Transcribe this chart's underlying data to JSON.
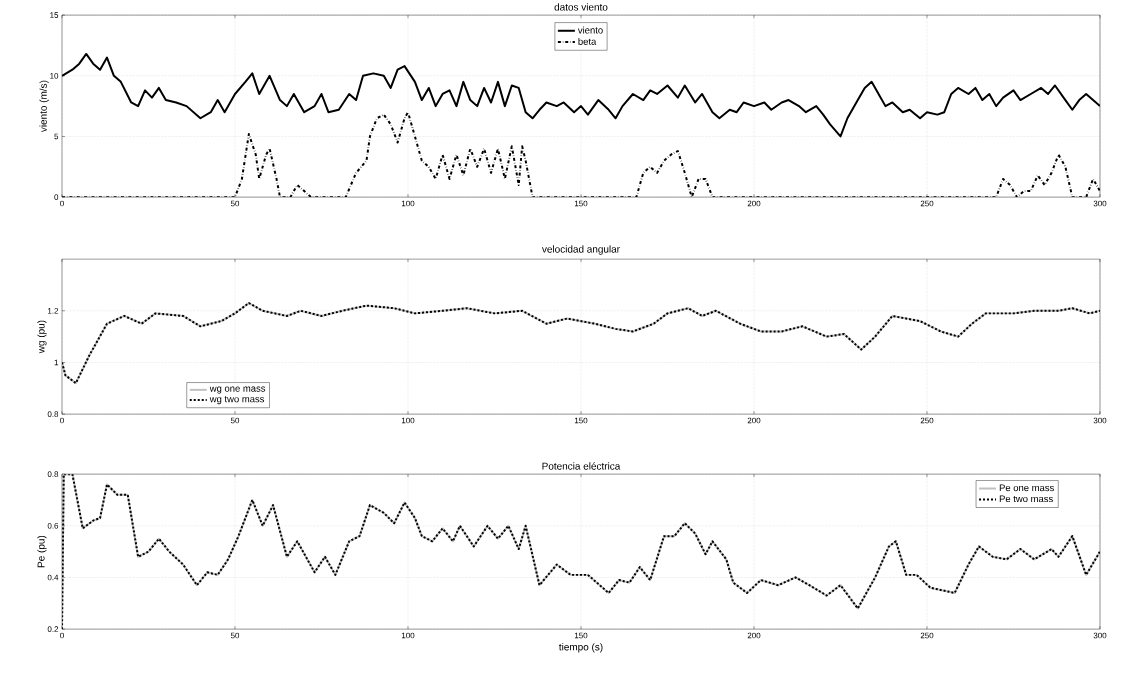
{
  "chart_data": [
    {
      "type": "line",
      "title": "datos viento",
      "ylabel": "viento (m/s)",
      "xlim": [
        0,
        300
      ],
      "ylim": [
        0,
        15
      ],
      "xticks": [
        0,
        50,
        100,
        150,
        200,
        250,
        300
      ],
      "yticks": [
        0,
        5,
        10,
        15
      ],
      "grid": true,
      "legend": "top",
      "series": [
        {
          "name": "viento",
          "color": "#000000",
          "line_style": "solid",
          "x": [
            0,
            3,
            5,
            7,
            9,
            11,
            13,
            15,
            17,
            20,
            22,
            24,
            26,
            28,
            30,
            33,
            36,
            40,
            43,
            45,
            47,
            50,
            53,
            55,
            57,
            60,
            63,
            65,
            67,
            70,
            73,
            75,
            77,
            80,
            83,
            85,
            87,
            90,
            93,
            95,
            97,
            99,
            102,
            104,
            106,
            108,
            110,
            112,
            114,
            116,
            118,
            120,
            122,
            124,
            126,
            128,
            130,
            132,
            134,
            136,
            138,
            140,
            143,
            145,
            148,
            150,
            152,
            155,
            158,
            160,
            162,
            165,
            168,
            170,
            172,
            175,
            178,
            180,
            183,
            185,
            188,
            190,
            193,
            195,
            197,
            200,
            203,
            205,
            208,
            210,
            213,
            215,
            218,
            220,
            222,
            225,
            227,
            230,
            232,
            234,
            236,
            238,
            240,
            243,
            245,
            248,
            250,
            253,
            255,
            257,
            259,
            262,
            264,
            266,
            268,
            270,
            272,
            275,
            277,
            280,
            283,
            285,
            287,
            290,
            292,
            294,
            296,
            298,
            300
          ],
          "values": [
            10,
            10.5,
            11,
            11.8,
            11,
            10.5,
            11.5,
            10,
            9.5,
            7.8,
            7.5,
            8.8,
            8.2,
            9,
            8,
            7.8,
            7.5,
            6.5,
            7,
            8,
            7,
            8.5,
            9.5,
            10.2,
            8.5,
            10,
            8,
            7.5,
            8.5,
            7,
            7.5,
            8.5,
            7,
            7.2,
            8.5,
            8,
            10,
            10.2,
            10,
            9,
            10.5,
            10.8,
            9.5,
            8,
            9,
            7.5,
            8.5,
            8.8,
            7.5,
            9.5,
            8,
            7.5,
            9,
            7.8,
            9.5,
            7.5,
            9.2,
            9,
            7,
            6.5,
            7.2,
            7.8,
            7.5,
            7.8,
            7,
            7.5,
            6.8,
            8,
            7.2,
            6.5,
            7.5,
            8.5,
            8,
            8.8,
            8.5,
            9.2,
            8.2,
            9.2,
            7.8,
            8.5,
            7,
            6.5,
            7.2,
            7,
            7.8,
            7.5,
            7.8,
            7.2,
            7.8,
            8,
            7.5,
            7,
            7.5,
            6.8,
            6,
            5,
            6.5,
            8,
            9,
            9.5,
            8.5,
            7.5,
            7.8,
            7,
            7.2,
            6.5,
            7,
            6.8,
            7,
            8.5,
            9,
            8.5,
            9,
            8,
            8.5,
            7.5,
            8.2,
            8.8,
            8,
            8.5,
            9,
            8.5,
            9.2,
            8,
            7.2,
            8,
            8.5,
            8,
            7.5
          ]
        },
        {
          "name": "beta",
          "color": "#000000",
          "line_style": "dashdot",
          "x": [
            0,
            50,
            52,
            54,
            56,
            57,
            59,
            60,
            62,
            63,
            66,
            68,
            70,
            72,
            82,
            85,
            88,
            89,
            91,
            93,
            95,
            97,
            99,
            100,
            102,
            104,
            106,
            108,
            110,
            112,
            114,
            116,
            118,
            120,
            122,
            124,
            126,
            128,
            130,
            132,
            133,
            134,
            136,
            166,
            168,
            170,
            172,
            174,
            176,
            178,
            180,
            182,
            184,
            186,
            188,
            270,
            272,
            274,
            276,
            278,
            280,
            282,
            284,
            286,
            288,
            290,
            292,
            296,
            298,
            300
          ],
          "values": [
            0,
            0,
            1.5,
            5.2,
            3.5,
            1.5,
            3.5,
            4,
            1.5,
            0,
            0,
            1,
            0.5,
            0,
            0,
            2,
            3,
            5,
            6.5,
            6.8,
            6,
            4.5,
            6.5,
            7,
            5,
            3,
            2.5,
            1.5,
            3.5,
            1.5,
            3.5,
            1.8,
            4,
            2.5,
            4,
            2,
            4,
            1.5,
            4.2,
            1,
            4.2,
            3,
            0,
            0,
            2,
            2.5,
            2,
            3,
            3.5,
            3.8,
            2,
            0,
            1.5,
            1.5,
            0,
            0,
            1.5,
            1,
            0,
            0.5,
            0.5,
            1.8,
            1,
            2,
            3.5,
            2.5,
            0,
            0,
            1.5,
            0.5
          ]
        }
      ]
    },
    {
      "type": "line",
      "title": "velocidad angular",
      "ylabel": "wg (pu)",
      "xlim": [
        0,
        300
      ],
      "ylim": [
        0.8,
        1.4
      ],
      "xticks": [
        0,
        50,
        100,
        150,
        200,
        250,
        300
      ],
      "yticks": [
        0.8,
        1,
        1.2
      ],
      "grid": true,
      "legend": "bottom left",
      "series": [
        {
          "name": "wg one mass",
          "color": "#c0c0c0",
          "line_style": "solid",
          "x": [
            0,
            1,
            4,
            8,
            13,
            18,
            23,
            27,
            35,
            40,
            46,
            50,
            54,
            58,
            65,
            69,
            75,
            81,
            88,
            96,
            102,
            110,
            117,
            125,
            133,
            140,
            146,
            154,
            160,
            165,
            171,
            175,
            181,
            185,
            189,
            196,
            202,
            208,
            214,
            221,
            226,
            231,
            235,
            240,
            248,
            254,
            259,
            263,
            267,
            275,
            281,
            288,
            292,
            297,
            300
          ],
          "values": [
            1,
            0.95,
            0.92,
            1.03,
            1.15,
            1.18,
            1.15,
            1.19,
            1.18,
            1.14,
            1.16,
            1.19,
            1.23,
            1.2,
            1.18,
            1.2,
            1.18,
            1.2,
            1.22,
            1.21,
            1.19,
            1.2,
            1.21,
            1.19,
            1.2,
            1.15,
            1.17,
            1.15,
            1.13,
            1.12,
            1.15,
            1.19,
            1.21,
            1.18,
            1.2,
            1.15,
            1.12,
            1.12,
            1.14,
            1.1,
            1.11,
            1.05,
            1.1,
            1.18,
            1.16,
            1.12,
            1.1,
            1.15,
            1.19,
            1.19,
            1.2,
            1.2,
            1.21,
            1.19,
            1.2
          ]
        },
        {
          "name": "wg two mass",
          "color": "#000000",
          "line_style": "dotted",
          "x": [
            0,
            1,
            4,
            8,
            13,
            18,
            23,
            27,
            35,
            40,
            46,
            50,
            54,
            58,
            65,
            69,
            75,
            81,
            88,
            96,
            102,
            110,
            117,
            125,
            133,
            140,
            146,
            154,
            160,
            165,
            171,
            175,
            181,
            185,
            189,
            196,
            202,
            208,
            214,
            221,
            226,
            231,
            235,
            240,
            248,
            254,
            259,
            263,
            267,
            275,
            281,
            288,
            292,
            297,
            300
          ],
          "values": [
            1,
            0.95,
            0.92,
            1.03,
            1.15,
            1.18,
            1.15,
            1.19,
            1.18,
            1.14,
            1.16,
            1.19,
            1.23,
            1.2,
            1.18,
            1.2,
            1.18,
            1.2,
            1.22,
            1.21,
            1.19,
            1.2,
            1.21,
            1.19,
            1.2,
            1.15,
            1.17,
            1.15,
            1.13,
            1.12,
            1.15,
            1.19,
            1.21,
            1.18,
            1.2,
            1.15,
            1.12,
            1.12,
            1.14,
            1.1,
            1.11,
            1.05,
            1.1,
            1.18,
            1.16,
            1.12,
            1.1,
            1.15,
            1.19,
            1.19,
            1.2,
            1.2,
            1.21,
            1.19,
            1.2
          ]
        }
      ]
    },
    {
      "type": "line",
      "title": "Potencia eléctrica",
      "ylabel": "Pe (pu)",
      "xlabel": "tiempo (s)",
      "xlim": [
        0,
        300
      ],
      "ylim": [
        0.2,
        0.8
      ],
      "xticks": [
        0,
        50,
        100,
        150,
        200,
        250,
        300
      ],
      "yticks": [
        0.2,
        0.4,
        0.6,
        0.8
      ],
      "grid": true,
      "legend": "top right",
      "series": [
        {
          "name": "Pe one mass",
          "color": "#c0c0c0",
          "line_style": "solid",
          "x": [
            0,
            0.5,
            3,
            6,
            9,
            11,
            13,
            16,
            19,
            22,
            25,
            28,
            31,
            35,
            39,
            42,
            45,
            48,
            51,
            55,
            58,
            61,
            65,
            68,
            73,
            76,
            79,
            83,
            86,
            89,
            93,
            96,
            99,
            102,
            104,
            107,
            110,
            113,
            115,
            119,
            123,
            126,
            129,
            132,
            134,
            138,
            143,
            147,
            152,
            158,
            161,
            164,
            167,
            170,
            174,
            177,
            180,
            183,
            186,
            188,
            192,
            194,
            198,
            202,
            207,
            212,
            216,
            221,
            225,
            230,
            235,
            239,
            241,
            244,
            247,
            251,
            258,
            262,
            265,
            269,
            273,
            277,
            281,
            286,
            288,
            292,
            296,
            300
          ],
          "values": [
            0.2,
            0.8,
            0.8,
            0.59,
            0.62,
            0.63,
            0.76,
            0.72,
            0.72,
            0.48,
            0.5,
            0.55,
            0.5,
            0.45,
            0.37,
            0.42,
            0.41,
            0.47,
            0.56,
            0.7,
            0.6,
            0.68,
            0.48,
            0.54,
            0.42,
            0.48,
            0.41,
            0.54,
            0.56,
            0.68,
            0.65,
            0.61,
            0.69,
            0.63,
            0.56,
            0.54,
            0.59,
            0.54,
            0.6,
            0.52,
            0.6,
            0.55,
            0.6,
            0.51,
            0.6,
            0.37,
            0.45,
            0.41,
            0.41,
            0.34,
            0.39,
            0.38,
            0.44,
            0.39,
            0.56,
            0.56,
            0.61,
            0.57,
            0.49,
            0.54,
            0.47,
            0.38,
            0.34,
            0.39,
            0.37,
            0.4,
            0.37,
            0.33,
            0.37,
            0.28,
            0.4,
            0.52,
            0.54,
            0.41,
            0.41,
            0.36,
            0.34,
            0.45,
            0.52,
            0.48,
            0.47,
            0.51,
            0.47,
            0.51,
            0.48,
            0.56,
            0.41,
            0.5
          ]
        },
        {
          "name": "Pe two mass",
          "color": "#000000",
          "line_style": "dotted",
          "x": [
            0,
            0.5,
            3,
            6,
            9,
            11,
            13,
            16,
            19,
            22,
            25,
            28,
            31,
            35,
            39,
            42,
            45,
            48,
            51,
            55,
            58,
            61,
            65,
            68,
            73,
            76,
            79,
            83,
            86,
            89,
            93,
            96,
            99,
            102,
            104,
            107,
            110,
            113,
            115,
            119,
            123,
            126,
            129,
            132,
            134,
            138,
            143,
            147,
            152,
            158,
            161,
            164,
            167,
            170,
            174,
            177,
            180,
            183,
            186,
            188,
            192,
            194,
            198,
            202,
            207,
            212,
            216,
            221,
            225,
            230,
            235,
            239,
            241,
            244,
            247,
            251,
            258,
            262,
            265,
            269,
            273,
            277,
            281,
            286,
            288,
            292,
            296,
            300
          ],
          "values": [
            0.2,
            0.8,
            0.8,
            0.59,
            0.62,
            0.63,
            0.76,
            0.72,
            0.72,
            0.48,
            0.5,
            0.55,
            0.5,
            0.45,
            0.37,
            0.42,
            0.41,
            0.47,
            0.56,
            0.7,
            0.6,
            0.68,
            0.48,
            0.54,
            0.42,
            0.48,
            0.41,
            0.54,
            0.56,
            0.68,
            0.65,
            0.61,
            0.69,
            0.63,
            0.56,
            0.54,
            0.59,
            0.54,
            0.6,
            0.52,
            0.6,
            0.55,
            0.6,
            0.51,
            0.6,
            0.37,
            0.45,
            0.41,
            0.41,
            0.34,
            0.39,
            0.38,
            0.44,
            0.39,
            0.56,
            0.56,
            0.61,
            0.57,
            0.49,
            0.54,
            0.47,
            0.38,
            0.34,
            0.39,
            0.37,
            0.4,
            0.37,
            0.33,
            0.37,
            0.28,
            0.4,
            0.52,
            0.54,
            0.41,
            0.41,
            0.36,
            0.34,
            0.45,
            0.52,
            0.48,
            0.47,
            0.51,
            0.47,
            0.51,
            0.48,
            0.56,
            0.41,
            0.5
          ]
        }
      ]
    }
  ]
}
